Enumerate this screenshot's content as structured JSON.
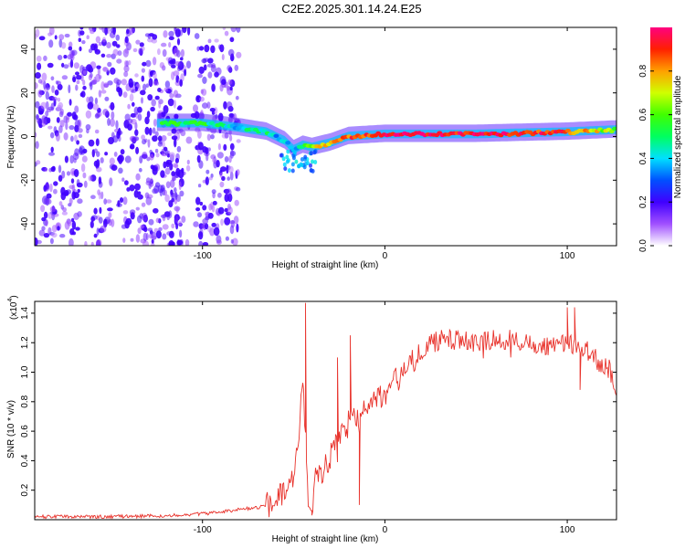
{
  "figure_title": "C2E2.2025.301.14.24.E25",
  "chart_data": [
    {
      "type": "heatmap",
      "title": "C2E2.2025.301.14.24.E25",
      "xlabel": "Height of straight line (km)",
      "ylabel": "Frequency (Hz)",
      "xlim": [
        -192,
        127
      ],
      "ylim": [
        -50,
        50
      ],
      "xticks": [
        -100,
        0,
        100
      ],
      "yticks": [
        -40,
        -20,
        0,
        20,
        40
      ],
      "colorbar": {
        "label": "Normalized spectral amplitude",
        "range": [
          0,
          1
        ],
        "ticks": [
          0.0,
          0.2,
          0.4,
          0.6,
          0.8
        ]
      },
      "ridge": {
        "x": [
          -120,
          -100,
          -80,
          -65,
          -55,
          -50,
          -45,
          -40,
          -30,
          -20,
          0,
          50,
          100,
          127
        ],
        "frequency": [
          6,
          6,
          4,
          2,
          -2,
          -6,
          -4,
          -5,
          -3,
          0,
          1,
          1,
          2,
          3
        ],
        "amplitude": [
          0.5,
          0.5,
          0.4,
          0.45,
          0.35,
          0.3,
          0.55,
          0.7,
          0.75,
          0.85,
          0.95,
          0.95,
          0.9,
          0.6
        ]
      },
      "noise_region": {
        "x_range": [
          -192,
          -80
        ],
        "frequency_range": [
          -50,
          50
        ],
        "amplitude_range": [
          0.1,
          0.3
        ]
      }
    },
    {
      "type": "line",
      "xlabel": "Height of straight line (km)",
      "ylabel": "SNR (10 * v/v)",
      "y_multiplier": "(x10",
      "y_multiplier_exp": "4",
      "y_multiplier_close": ")",
      "xlim": [
        -192,
        127
      ],
      "ylim": [
        0,
        1.48
      ],
      "xticks": [
        -100,
        0,
        100
      ],
      "yticks": [
        0.2,
        0.4,
        0.6,
        0.8,
        1.0,
        1.2,
        1.4
      ],
      "series": [
        {
          "name": "SNR",
          "color": "#e8312a",
          "x": [
            -192,
            -150,
            -110,
            -90,
            -80,
            -70,
            -60,
            -55,
            -50,
            -47,
            -45,
            -44,
            -42,
            -40,
            -38,
            -35,
            -30,
            -25,
            -20,
            -15,
            -10,
            -5,
            0,
            10,
            20,
            30,
            40,
            50,
            60,
            70,
            80,
            90,
            100,
            110,
            120,
            127
          ],
          "y": [
            0.02,
            0.02,
            0.03,
            0.05,
            0.07,
            0.08,
            0.12,
            0.2,
            0.3,
            0.6,
            1.0,
            0.7,
            0.08,
            0.06,
            0.35,
            0.3,
            0.42,
            0.55,
            0.65,
            0.72,
            0.8,
            0.82,
            0.85,
            1.0,
            1.15,
            1.22,
            1.22,
            1.2,
            1.22,
            1.22,
            1.2,
            1.18,
            1.2,
            1.15,
            1.05,
            0.92
          ],
          "spikes": [
            {
              "x": -43.5,
              "y": 1.47
            },
            {
              "x": -40.0,
              "y": 0.03
            },
            {
              "x": -26.0,
              "y": 1.1
            },
            {
              "x": -19.0,
              "y": 1.25
            },
            {
              "x": -14.0,
              "y": 0.1
            },
            {
              "x": 100.0,
              "y": 1.44
            },
            {
              "x": 104.0,
              "y": 1.44
            },
            {
              "x": 107.0,
              "y": 0.88
            }
          ]
        }
      ]
    }
  ]
}
